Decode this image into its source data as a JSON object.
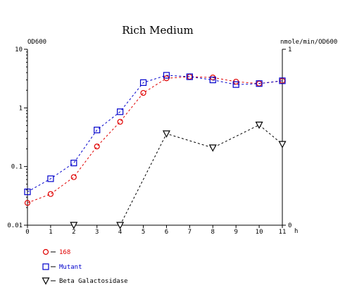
{
  "chart_data": {
    "type": "line",
    "title": "Rich Medium",
    "y_left_label": "OD600",
    "y_right_label": "nmole/min/OD600",
    "x_unit": "h",
    "x_range": [
      0,
      11
    ],
    "x_ticks": [
      "0",
      "1",
      "2",
      "3",
      "4",
      "5",
      "6",
      "7",
      "8",
      "9",
      "10",
      "11"
    ],
    "y_left_scale": "log",
    "y_left_range": [
      0.01,
      10
    ],
    "y_left_ticks": [
      "0.01",
      "0.1",
      "1",
      "10"
    ],
    "y_right_scale": "linear",
    "y_right_range": [
      0,
      1
    ],
    "y_right_ticks": [
      "0",
      "1"
    ],
    "grid": false,
    "legend_position": "bottom-left",
    "series": [
      {
        "name": "168",
        "axis": "left",
        "color": "#e00000",
        "marker": "circle",
        "x": [
          0,
          1,
          2,
          3,
          4,
          5,
          6,
          7,
          8,
          9,
          10,
          11
        ],
        "y": [
          0.024,
          0.034,
          0.066,
          0.22,
          0.58,
          1.8,
          3.2,
          3.4,
          3.3,
          2.8,
          2.6,
          2.9
        ]
      },
      {
        "name": "Mutant",
        "axis": "left",
        "color": "#0000cc",
        "marker": "square",
        "x": [
          0,
          1,
          2,
          3,
          4,
          5,
          6,
          7,
          8,
          9,
          10,
          11
        ],
        "y": [
          0.037,
          0.062,
          0.115,
          0.42,
          0.86,
          2.7,
          3.6,
          3.4,
          3.0,
          2.5,
          2.6,
          2.9
        ]
      },
      {
        "name": "Beta Galactosidase",
        "axis": "right",
        "color": "#000000",
        "marker": "triangle-down",
        "x": [
          2,
          4,
          6,
          8,
          10,
          11
        ],
        "y": [
          0.0,
          0.0,
          0.52,
          0.44,
          0.57,
          0.46
        ]
      }
    ]
  }
}
